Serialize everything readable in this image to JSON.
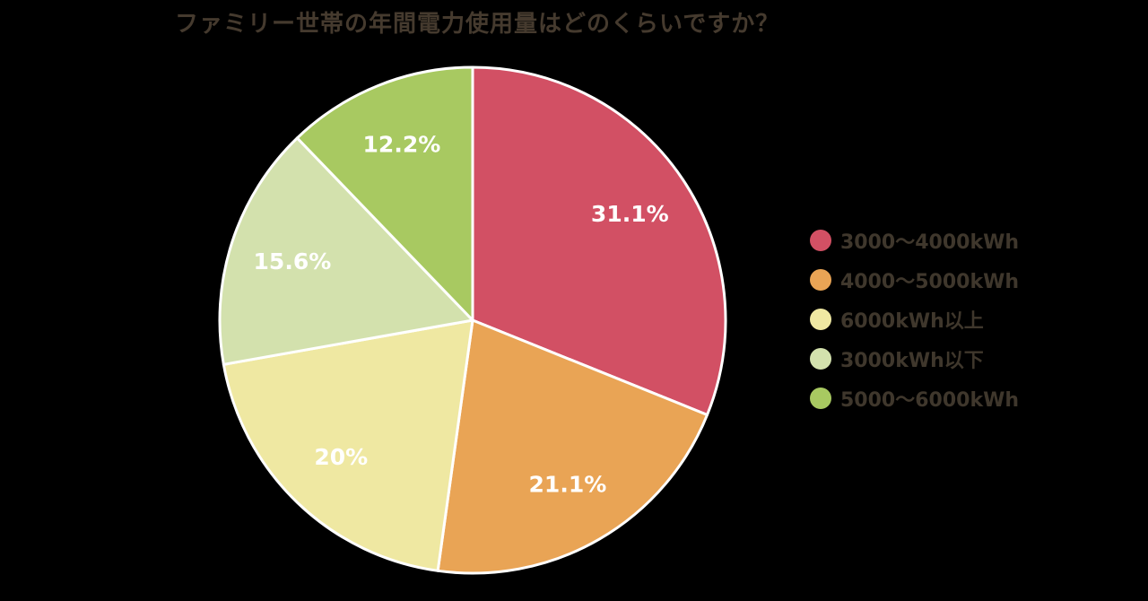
{
  "title": "ファミリー世帯の年間電力使用量はどのくらいですか？",
  "chart_data": {
    "type": "pie",
    "title": "ファミリー世帯の年間電力使用量はどのくらいですか？",
    "start_angle_deg": 0,
    "direction": "clockwise",
    "legend_position": "right",
    "slices": [
      {
        "label": "3000～4000kWh",
        "value": 31.1,
        "display": "31.1%",
        "color": "#d25064"
      },
      {
        "label": "4000～5000kWh",
        "value": 21.1,
        "display": "21.1%",
        "color": "#e9a455"
      },
      {
        "label": "6000kWh以上",
        "value": 20.0,
        "display": "20%",
        "color": "#efe8a2"
      },
      {
        "label": "3000kWh以下",
        "value": 15.6,
        "display": "15.6%",
        "color": "#d3e1ad"
      },
      {
        "label": "5000～6000kWh",
        "value": 12.2,
        "display": "12.2%",
        "color": "#a8c961"
      }
    ]
  }
}
